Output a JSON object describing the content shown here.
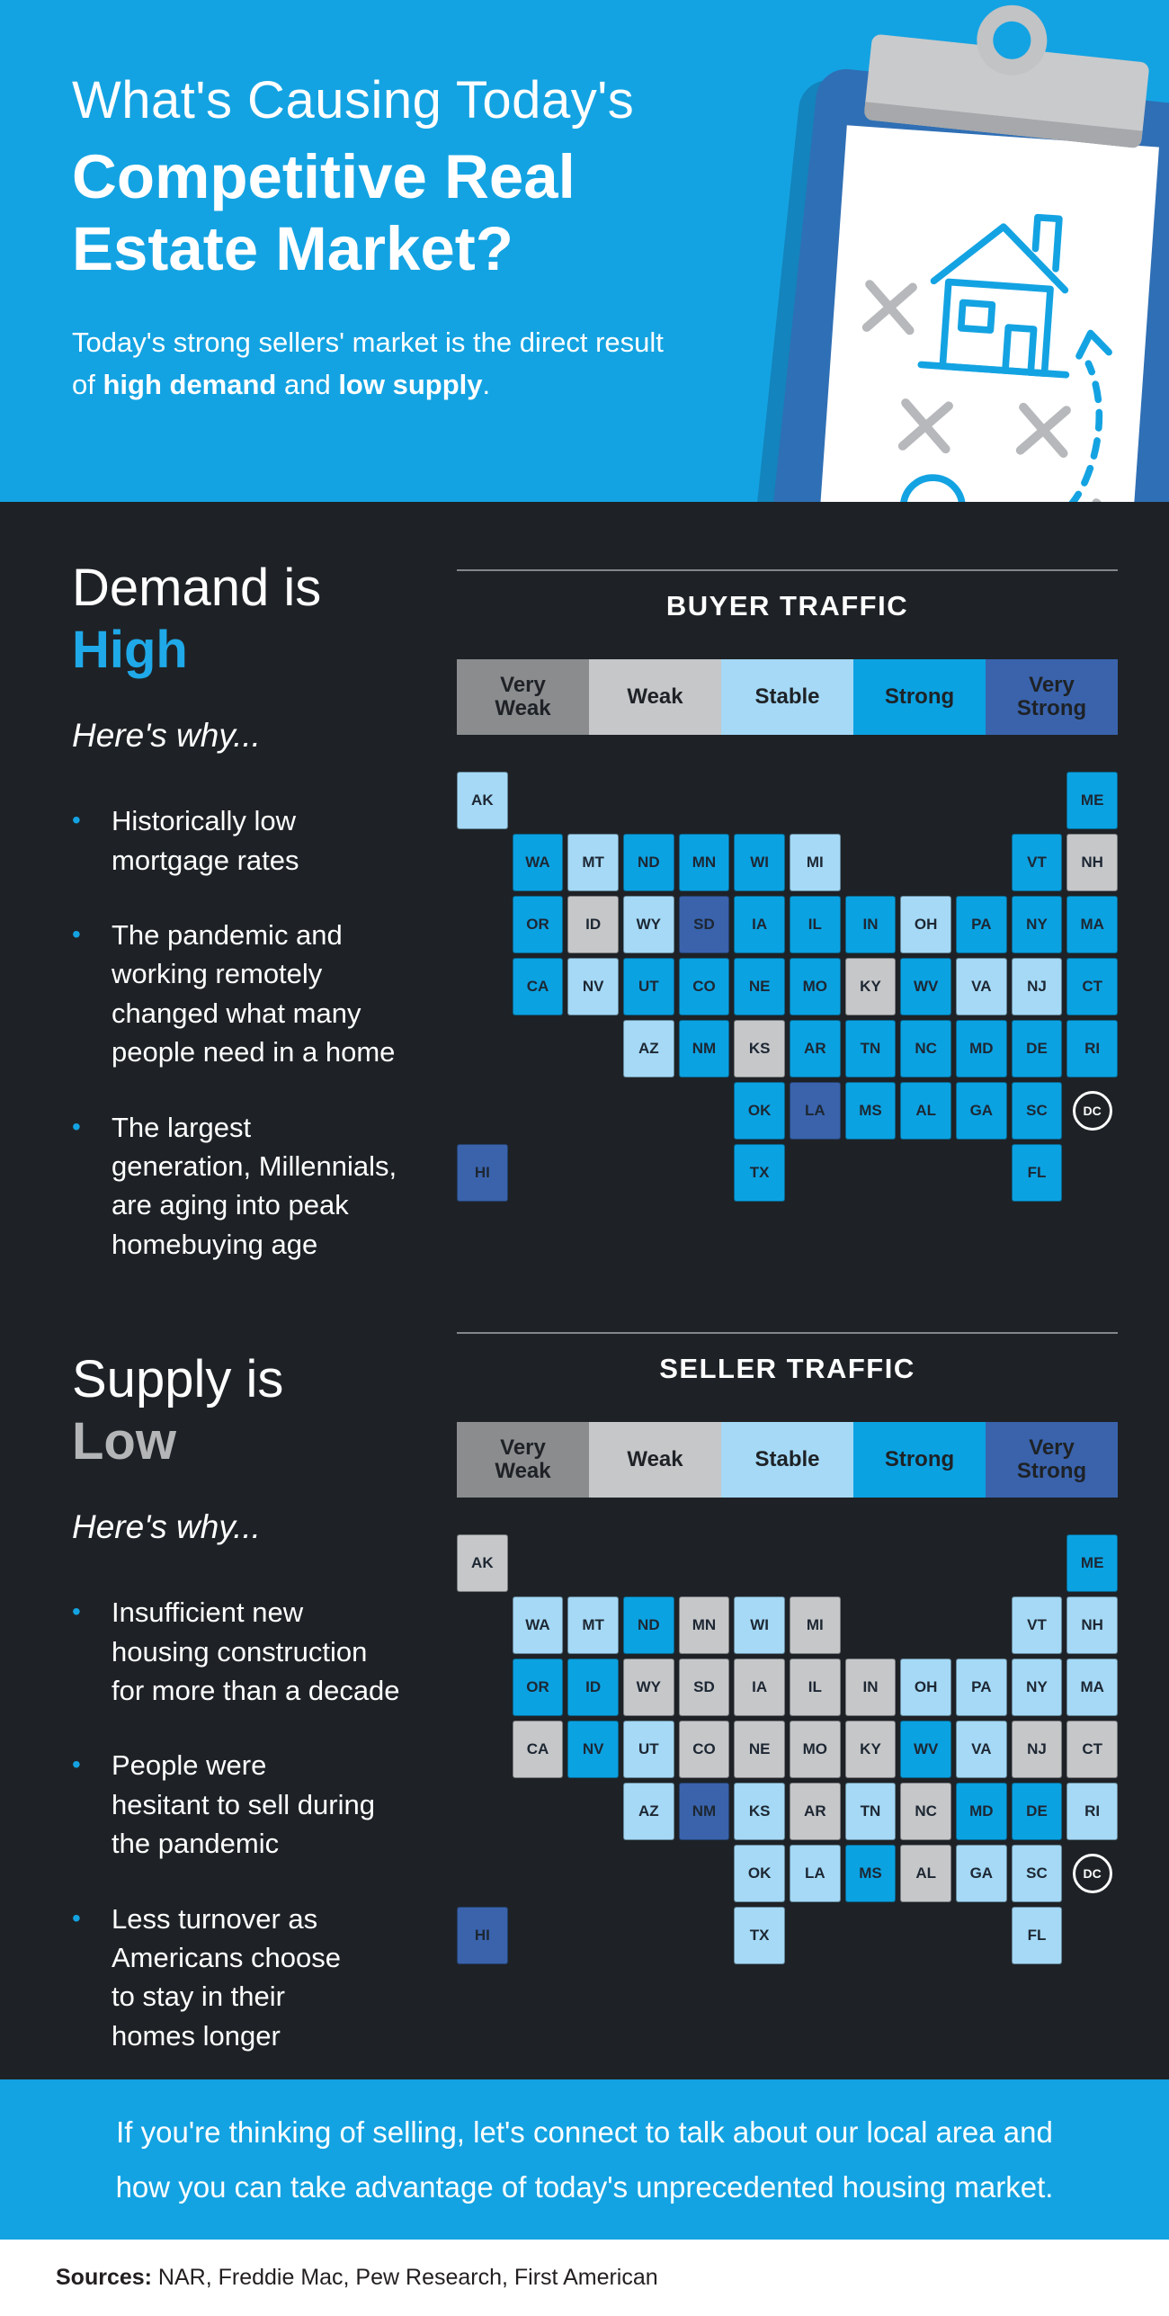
{
  "page": {
    "bg": "#1e2226",
    "accent_blue": "#14a3e2"
  },
  "header": {
    "title_line1": "What's Causing Today's",
    "title_line2": "Competitive Real",
    "title_line3": "Estate Market?",
    "subtitle": {
      "p1": "Today's strong sellers' market is the direct result of ",
      "b1": "high demand",
      "p2": " and ",
      "b2": "low supply",
      "p3": "."
    }
  },
  "demand": {
    "heading_1": "Demand is",
    "heading_2": "High",
    "tagline": "Here's why...",
    "bullets": [
      "Historically low\nmortgage rates",
      "The pandemic and\nworking remotely\nchanged what many\npeople need in a home",
      "The largest\ngeneration, Millennials,\nare aging into peak\nhomebuying age"
    ]
  },
  "supply": {
    "heading_1": "Supply is",
    "heading_2": "Low",
    "tagline": "Here's why...",
    "bullets": [
      "Insufficient new\nhousing construction\nfor more than a decade",
      "People were\nhesitant to sell during\nthe pandemic",
      "Less turnover as\nAmericans choose\nto stay in their\nhomes longer"
    ]
  },
  "map_scale": {
    "labels": [
      "Very Weak",
      "Weak",
      "Stable",
      "Strong",
      "Very Strong"
    ],
    "colors": {
      "Very Weak": "#8a8c8e",
      "Weak": "#c6c7c9",
      "Stable": "#a5d9f6",
      "Strong": "#0ba2e2",
      "Very Strong": "#3a63ac"
    }
  },
  "map_grid": [
    [
      "AK",
      null,
      null,
      null,
      null,
      null,
      null,
      null,
      null,
      null,
      null,
      "ME"
    ],
    [
      null,
      "WA",
      "MT",
      "ND",
      "MN",
      "WI",
      "MI",
      null,
      null,
      null,
      "VT",
      "NH"
    ],
    [
      null,
      "OR",
      "ID",
      "WY",
      "SD",
      "IA",
      "IL",
      "IN",
      "OH",
      "PA",
      "NY",
      "MA"
    ],
    [
      null,
      "CA",
      "NV",
      "UT",
      "CO",
      "NE",
      "MO",
      "KY",
      "WV",
      "VA",
      "NJ",
      "CT"
    ],
    [
      null,
      null,
      null,
      "AZ",
      "NM",
      "KS",
      "AR",
      "TN",
      "NC",
      "MD",
      "DE",
      "RI"
    ],
    [
      null,
      null,
      null,
      null,
      null,
      "OK",
      "LA",
      "MS",
      "AL",
      "GA",
      "SC",
      "DC"
    ],
    [
      "HI",
      null,
      null,
      null,
      null,
      "TX",
      null,
      null,
      null,
      null,
      "FL",
      null
    ]
  ],
  "chart_data": [
    {
      "type": "heatmap",
      "variant": "us-state-choropleth",
      "title": "BUYER TRAFFIC",
      "legend_labels": [
        "Very Weak",
        "Weak",
        "Stable",
        "Strong",
        "Very Strong"
      ],
      "legend_position": "top",
      "states": {
        "AK": "Stable",
        "AL": "Strong",
        "AR": "Strong",
        "AZ": "Stable",
        "CA": "Strong",
        "CO": "Strong",
        "CT": "Strong",
        "DC": null,
        "DE": "Strong",
        "FL": "Strong",
        "GA": "Strong",
        "HI": "Very Strong",
        "IA": "Strong",
        "ID": "Weak",
        "IL": "Strong",
        "IN": "Strong",
        "KS": "Weak",
        "KY": "Weak",
        "LA": "Very Strong",
        "MA": "Strong",
        "MD": "Strong",
        "ME": "Strong",
        "MI": "Stable",
        "MN": "Strong",
        "MO": "Strong",
        "MS": "Strong",
        "MT": "Stable",
        "NC": "Strong",
        "ND": "Strong",
        "NE": "Strong",
        "NH": "Weak",
        "NJ": "Stable",
        "NM": "Strong",
        "NV": "Stable",
        "NY": "Strong",
        "OH": "Stable",
        "OK": "Strong",
        "OR": "Strong",
        "PA": "Strong",
        "RI": "Strong",
        "SC": "Strong",
        "SD": "Very Strong",
        "TN": "Strong",
        "TX": "Strong",
        "UT": "Strong",
        "VA": "Stable",
        "VT": "Strong",
        "WA": "Strong",
        "WI": "Strong",
        "WV": "Strong",
        "WY": "Stable"
      }
    },
    {
      "type": "heatmap",
      "variant": "us-state-choropleth",
      "title": "SELLER TRAFFIC",
      "legend_labels": [
        "Very Weak",
        "Weak",
        "Stable",
        "Strong",
        "Very Strong"
      ],
      "legend_position": "top",
      "states": {
        "AK": "Weak",
        "AL": "Weak",
        "AR": "Weak",
        "AZ": "Stable",
        "CA": "Weak",
        "CO": "Weak",
        "CT": "Weak",
        "DC": null,
        "DE": "Strong",
        "FL": "Stable",
        "GA": "Stable",
        "HI": "Very Strong",
        "IA": "Weak",
        "ID": "Strong",
        "IL": "Weak",
        "IN": "Weak",
        "KS": "Stable",
        "KY": "Weak",
        "LA": "Stable",
        "MA": "Stable",
        "MD": "Strong",
        "ME": "Strong",
        "MI": "Weak",
        "MN": "Weak",
        "MO": "Weak",
        "MS": "Strong",
        "MT": "Stable",
        "NC": "Weak",
        "ND": "Strong",
        "NE": "Weak",
        "NH": "Stable",
        "NJ": "Weak",
        "NM": "Very Strong",
        "NV": "Strong",
        "NY": "Stable",
        "OH": "Stable",
        "OK": "Stable",
        "OR": "Strong",
        "PA": "Stable",
        "RI": "Stable",
        "SC": "Stable",
        "SD": "Weak",
        "TN": "Stable",
        "TX": "Stable",
        "UT": "Stable",
        "VA": "Stable",
        "VT": "Stable",
        "WA": "Stable",
        "WI": "Stable",
        "WV": "Strong",
        "WY": "Weak"
      }
    }
  ],
  "cta": {
    "line1": "If you're thinking of selling, let's connect to talk about our local area and",
    "line2": "how you can take advantage of today's unprecedented housing market."
  },
  "footer": {
    "sources_label": "Sources:",
    "sources_text": " NAR, Freddie Mac, Pew Research, First American"
  }
}
